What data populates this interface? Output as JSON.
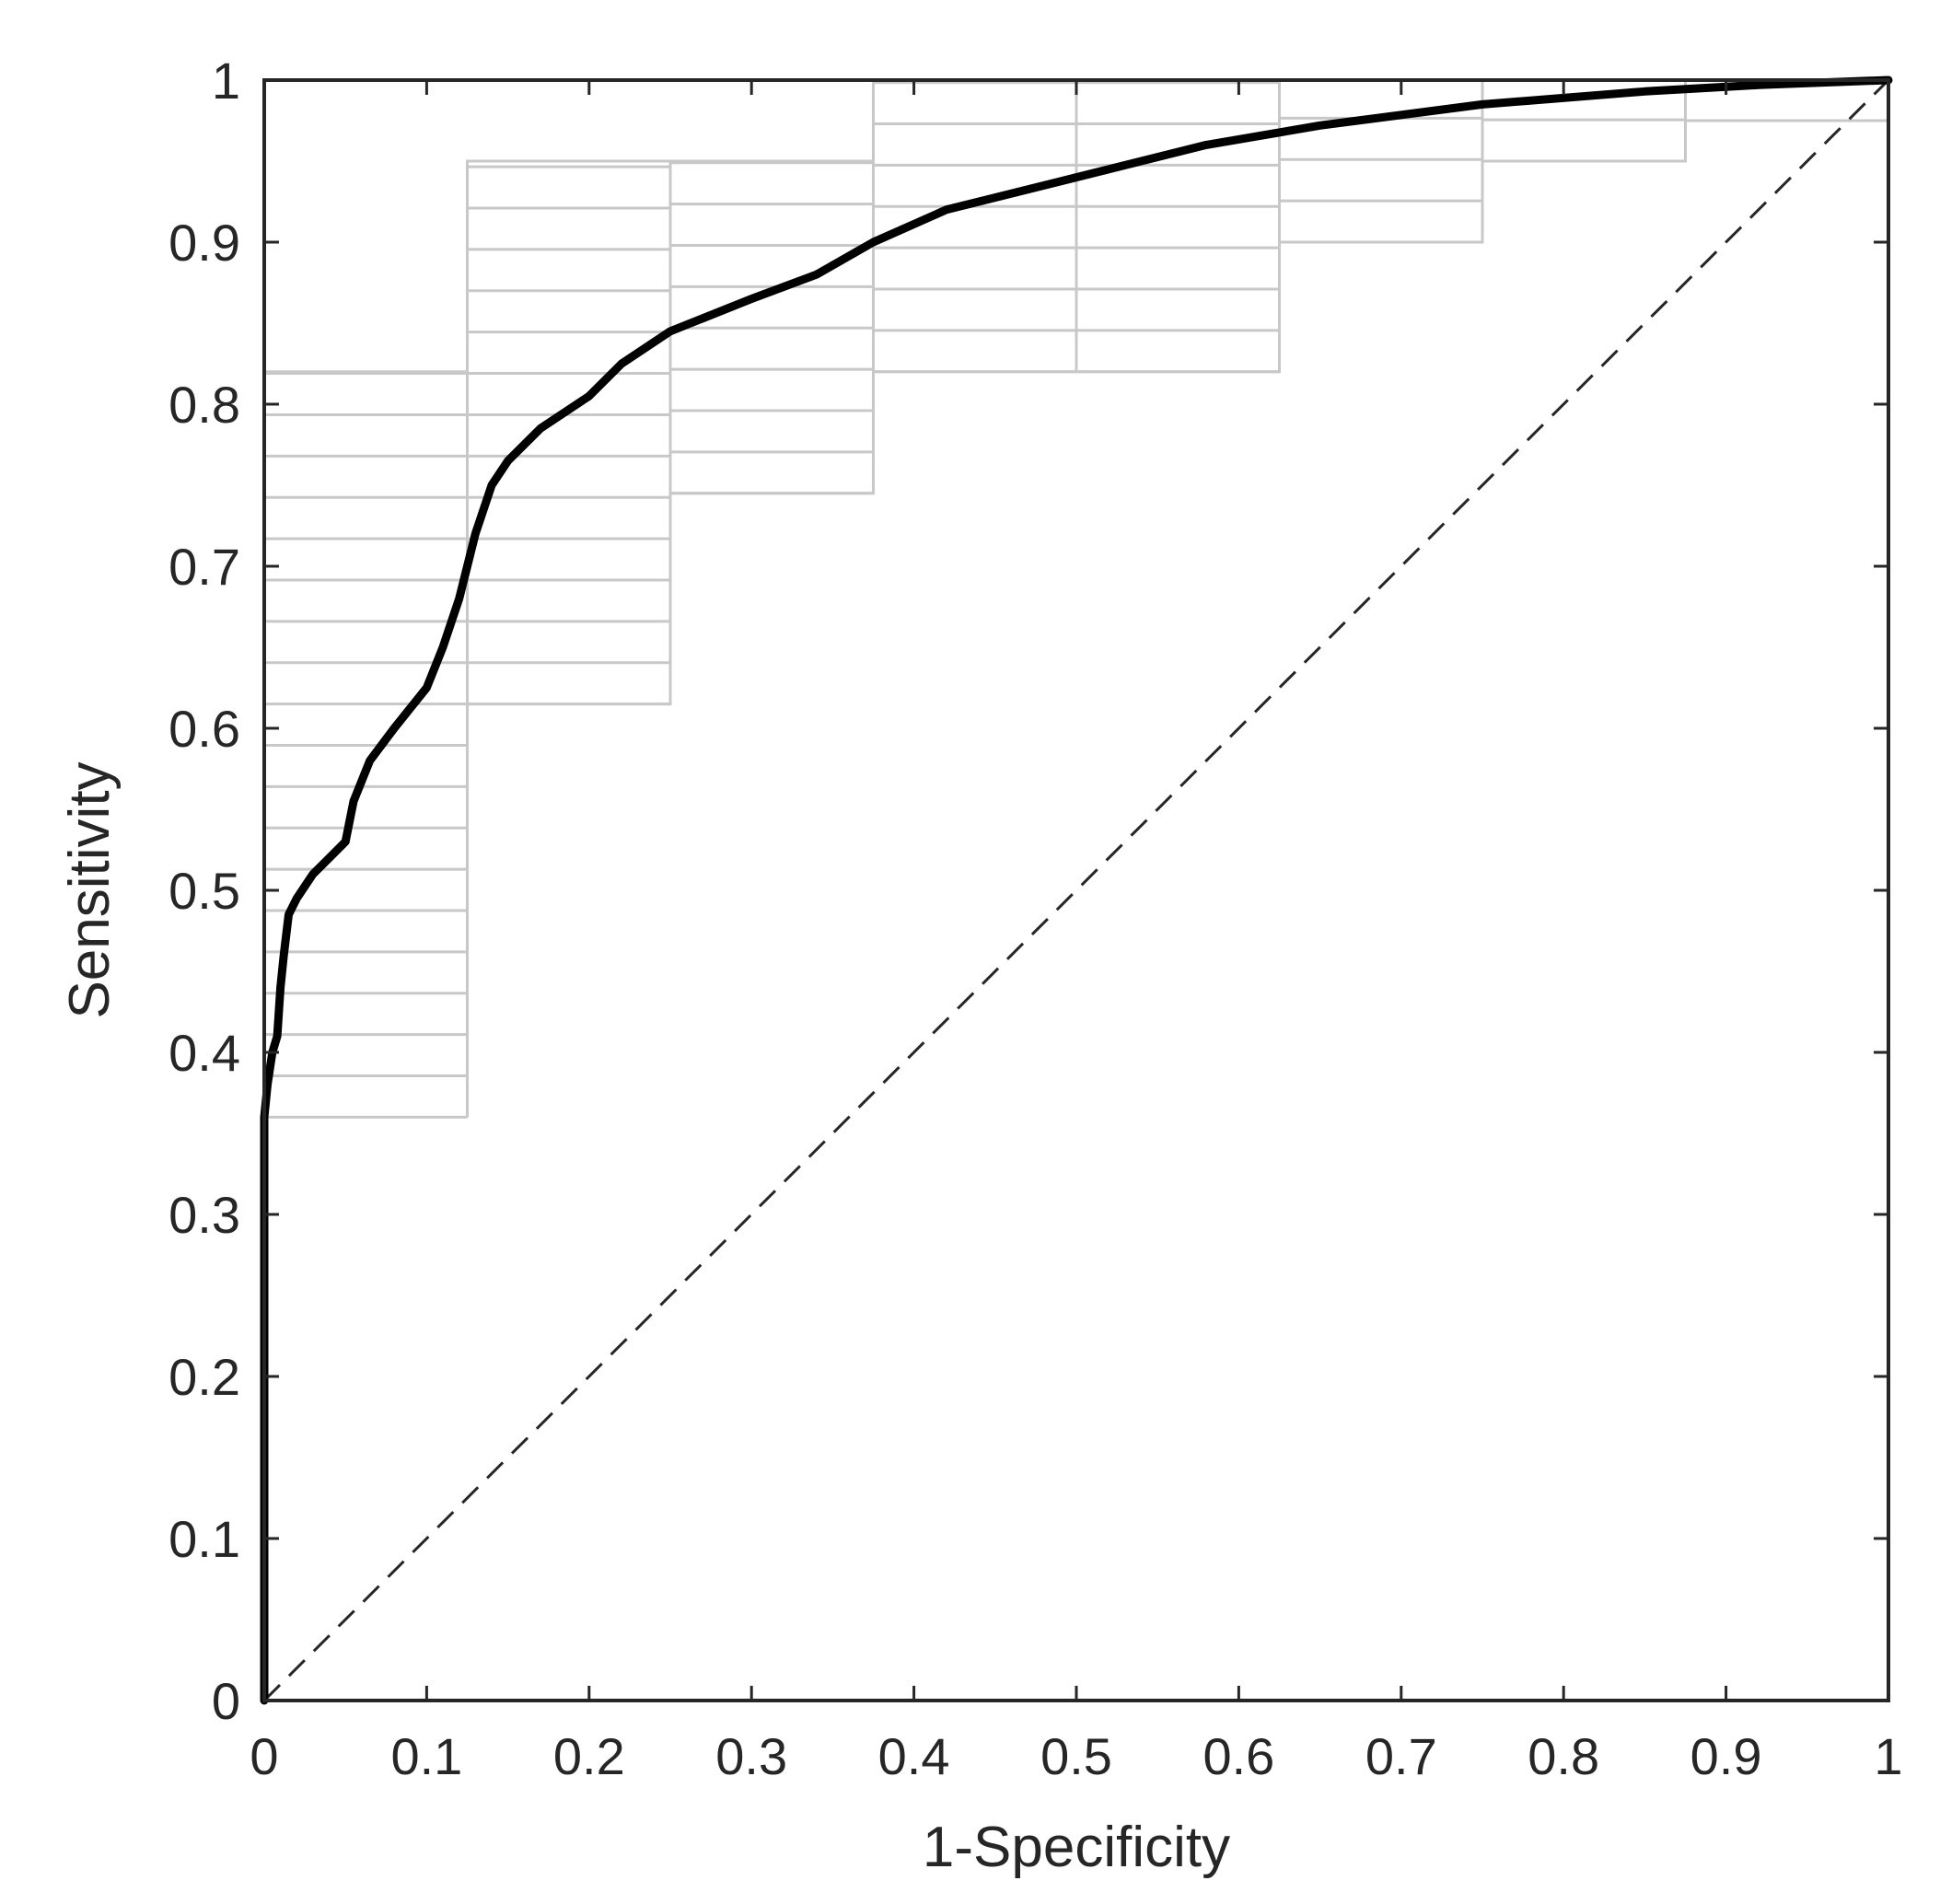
{
  "chart_data": {
    "type": "line",
    "xlabel": "1-Specificity",
    "ylabel": "Sensitivity",
    "xlim": [
      0,
      1
    ],
    "ylim": [
      0,
      1
    ],
    "xticks": [
      "0",
      "0.1",
      "0.2",
      "0.3",
      "0.4",
      "0.5",
      "0.6",
      "0.7",
      "0.8",
      "0.9",
      "1"
    ],
    "yticks": [
      "0",
      "0.1",
      "0.2",
      "0.3",
      "0.4",
      "0.5",
      "0.6",
      "0.7",
      "0.8",
      "0.9",
      "1"
    ],
    "grid": false,
    "colors": {
      "curve": "#000000",
      "steps": "#c8c8c8",
      "axes": "#262626",
      "diagonal": "#262626"
    },
    "series": [
      {
        "style": "thick-solid",
        "x": [
          0,
          0,
          0.002,
          0.005,
          0.008,
          0.01,
          0.012,
          0.015,
          0.02,
          0.03,
          0.04,
          0.05,
          0.055,
          0.065,
          0.08,
          0.1,
          0.11,
          0.12,
          0.125,
          0.13,
          0.14,
          0.15,
          0.17,
          0.2,
          0.22,
          0.25,
          0.3,
          0.34,
          0.375,
          0.42,
          0.5,
          0.58,
          0.65,
          0.75,
          0.85,
          0.92,
          1
        ],
        "y": [
          0,
          0.36,
          0.38,
          0.4,
          0.41,
          0.44,
          0.46,
          0.485,
          0.495,
          0.51,
          0.52,
          0.53,
          0.555,
          0.58,
          0.6,
          0.625,
          0.65,
          0.68,
          0.7,
          0.72,
          0.75,
          0.765,
          0.785,
          0.805,
          0.825,
          0.845,
          0.865,
          0.88,
          0.9,
          0.92,
          0.94,
          0.96,
          0.972,
          0.985,
          0.993,
          0.997,
          1
        ]
      },
      {
        "style": "thin-step",
        "x": [
          0.125,
          0.125,
          0.25,
          0.25,
          0.375,
          0.375,
          0.5,
          0.5,
          0.625,
          0.625,
          0.75,
          0.75,
          0.875,
          0.875,
          1
        ],
        "y": [
          0.36,
          0.615,
          0.615,
          0.745,
          0.745,
          0.82,
          0.82,
          0.82,
          0.82,
          0.9,
          0.9,
          0.95,
          0.95,
          0.975,
          0.975
        ]
      },
      {
        "style": "thin-step",
        "x": [
          0,
          0,
          0.125,
          0.125,
          0.375,
          0.375,
          1
        ],
        "y": [
          0.36,
          0.82,
          0.82,
          0.95,
          0.95,
          1,
          1
        ]
      },
      {
        "style": "dashed",
        "x": [
          0,
          1
        ],
        "y": [
          0,
          1
        ]
      }
    ]
  }
}
